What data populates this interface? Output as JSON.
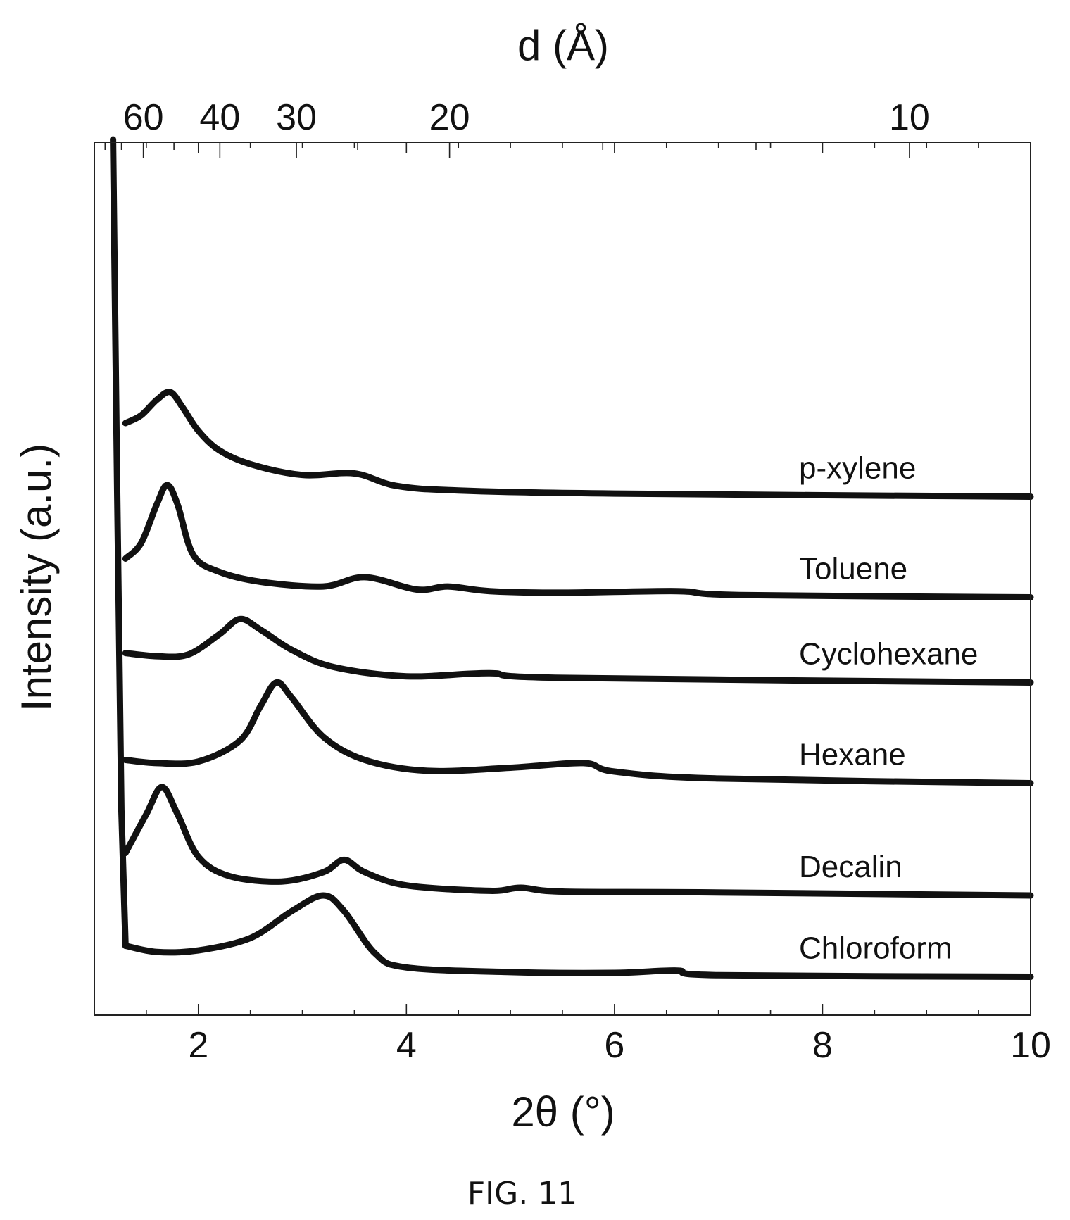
{
  "figure_caption": "FIG. 11",
  "chart_data": {
    "type": "line",
    "xlabel": "2θ (°)",
    "ylabel": "Intensity (a.u.)",
    "top_axis_label": "d (Å)",
    "xlim": [
      1,
      10
    ],
    "x_ticks": [
      2,
      4,
      6,
      8,
      10
    ],
    "x_minor_step": 0.5,
    "top_axis_ticks": [
      60,
      40,
      30,
      20,
      10
    ],
    "top_axis_minor_ticks": [
      80,
      70,
      50,
      25,
      15,
      12
    ],
    "y_ticks": "none",
    "grid": false,
    "legend": "inline labels at right end of each curve",
    "line_color": "#111111",
    "series": [
      {
        "name": "p-xylene",
        "offset": 5.15,
        "x": [
          1.3,
          1.45,
          1.6,
          1.73,
          1.85,
          2.0,
          2.2,
          2.5,
          3.0,
          3.5,
          3.9,
          4.5,
          6.0,
          10.0
        ],
        "y": [
          0.95,
          1.05,
          1.25,
          1.35,
          1.15,
          0.85,
          0.6,
          0.42,
          0.28,
          0.3,
          0.14,
          0.08,
          0.04,
          0.0
        ]
      },
      {
        "name": "Toluene",
        "offset": 3.85,
        "x": [
          1.3,
          1.45,
          1.6,
          1.7,
          1.8,
          1.95,
          2.2,
          2.6,
          3.2,
          3.6,
          4.1,
          4.4,
          4.8,
          5.5,
          6.6,
          7.2,
          10.0
        ],
        "y": [
          0.5,
          0.7,
          1.2,
          1.45,
          1.2,
          0.55,
          0.33,
          0.2,
          0.14,
          0.26,
          0.1,
          0.14,
          0.08,
          0.06,
          0.08,
          0.03,
          0.0
        ]
      },
      {
        "name": "Cyclohexane",
        "offset": 2.75,
        "x": [
          1.3,
          1.6,
          1.9,
          2.2,
          2.4,
          2.6,
          2.9,
          3.3,
          4.0,
          4.8,
          5.5,
          10.0
        ],
        "y": [
          0.38,
          0.34,
          0.36,
          0.62,
          0.82,
          0.68,
          0.42,
          0.2,
          0.08,
          0.12,
          0.06,
          0.0
        ]
      },
      {
        "name": "Hexane",
        "offset": 1.45,
        "x": [
          1.3,
          1.6,
          2.0,
          2.4,
          2.6,
          2.75,
          2.9,
          3.2,
          3.6,
          4.2,
          5.0,
          5.7,
          6.0,
          7.0,
          10.0
        ],
        "y": [
          0.3,
          0.26,
          0.28,
          0.55,
          1.0,
          1.3,
          1.1,
          0.6,
          0.3,
          0.16,
          0.2,
          0.26,
          0.15,
          0.06,
          0.0
        ]
      },
      {
        "name": "Decalin",
        "offset": 0.0,
        "x": [
          1.3,
          1.5,
          1.65,
          1.8,
          2.0,
          2.3,
          2.8,
          3.2,
          3.4,
          3.6,
          4.0,
          4.8,
          5.1,
          5.5,
          6.9,
          10.0
        ],
        "y": [
          0.55,
          1.05,
          1.4,
          1.05,
          0.5,
          0.25,
          0.18,
          0.3,
          0.46,
          0.3,
          0.13,
          0.06,
          0.1,
          0.05,
          0.04,
          0.0
        ]
      },
      {
        "name": "Chloroform",
        "offset": -1.05,
        "x": [
          1.3,
          1.6,
          2.0,
          2.5,
          2.9,
          3.2,
          3.4,
          3.7,
          4.0,
          5.0,
          6.0,
          6.6,
          7.0,
          10.0
        ],
        "y": [
          0.4,
          0.32,
          0.34,
          0.5,
          0.85,
          1.05,
          0.85,
          0.3,
          0.12,
          0.06,
          0.05,
          0.08,
          0.02,
          0.0
        ]
      }
    ],
    "low_angle_edge": {
      "x": [
        1.18,
        1.22,
        1.26,
        1.3
      ],
      "direction": "rising steeply toward low angle"
    }
  }
}
